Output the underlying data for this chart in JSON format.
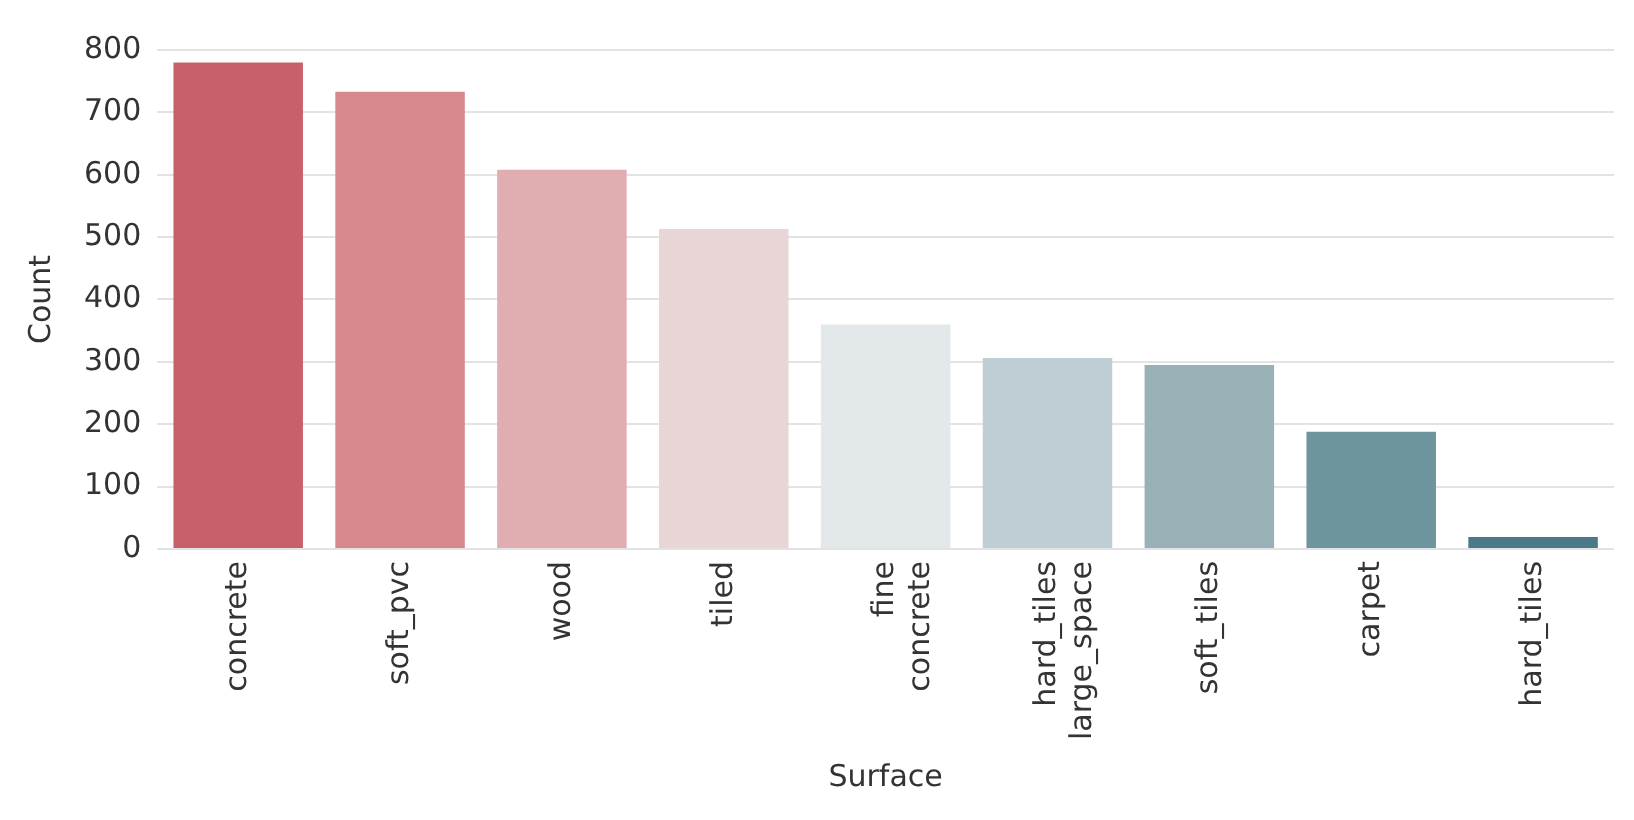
{
  "chart_data": {
    "type": "bar",
    "xlabel": "Surface",
    "ylabel": "Count",
    "categories": [
      "concrete",
      "soft_pvc",
      "wood",
      "tiled",
      "fine\nconcrete",
      "hard_tiles\nlarge_space",
      "soft_tiles",
      "carpet",
      "hard_tiles"
    ],
    "values": [
      780,
      733,
      608,
      513,
      360,
      306,
      295,
      188,
      19
    ],
    "colors": [
      "#c8606a",
      "#d7888c",
      "#e0adb1",
      "#e8d5d6",
      "#e3e8ea",
      "#bfcdd4",
      "#98b0b6",
      "#6e949e",
      "#4b7987"
    ],
    "ylim": [
      0,
      800
    ],
    "yticks": [
      0,
      100,
      200,
      300,
      400,
      500,
      600,
      700,
      800
    ],
    "grid": "y"
  }
}
